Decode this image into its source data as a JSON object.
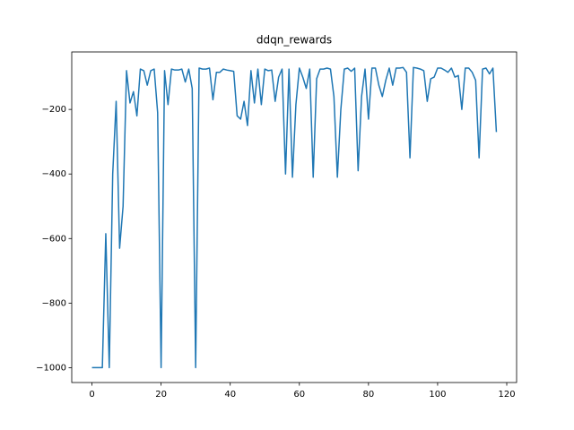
{
  "chart_data": {
    "type": "line",
    "title": "ddqn_rewards",
    "x": [
      0,
      1,
      2,
      3,
      4,
      5,
      6,
      7,
      8,
      9,
      10,
      11,
      12,
      13,
      14,
      15,
      16,
      17,
      18,
      19,
      20,
      21,
      22,
      23,
      24,
      25,
      26,
      27,
      28,
      29,
      30,
      31,
      32,
      33,
      34,
      35,
      36,
      37,
      38,
      39,
      40,
      41,
      42,
      43,
      44,
      45,
      46,
      47,
      48,
      49,
      50,
      51,
      52,
      53,
      54,
      55,
      56,
      57,
      58,
      59,
      60,
      61,
      62,
      63,
      64,
      65,
      66,
      67,
      68,
      69,
      70,
      71,
      72,
      73,
      74,
      75,
      76,
      77,
      78,
      79,
      80,
      81,
      82,
      83,
      84,
      85,
      86,
      87,
      88,
      89,
      90,
      91,
      92,
      93,
      94,
      95,
      96,
      97,
      98,
      99,
      100,
      101,
      102,
      103,
      104,
      105,
      106,
      107,
      108,
      109,
      110,
      111,
      112,
      113,
      114,
      115,
      116,
      117
    ],
    "series": [
      {
        "color": "#1f77b4",
        "values": [
          -1000,
          -1000,
          -1000,
          -1000,
          -585,
          -1000,
          -400,
          -175,
          -630,
          -500,
          -80,
          -180,
          -145,
          -220,
          -75,
          -80,
          -125,
          -80,
          -75,
          -210,
          -1000,
          -80,
          -185,
          -75,
          -78,
          -78,
          -75,
          -115,
          -75,
          -135,
          -1000,
          -72,
          -75,
          -75,
          -72,
          -170,
          -85,
          -85,
          -75,
          -78,
          -80,
          -82,
          -220,
          -230,
          -175,
          -250,
          -80,
          -180,
          -75,
          -185,
          -75,
          -80,
          -78,
          -175,
          -100,
          -75,
          -400,
          -75,
          -410,
          -185,
          -72,
          -100,
          -135,
          -75,
          -410,
          -105,
          -75,
          -75,
          -72,
          -75,
          -160,
          -410,
          -200,
          -75,
          -72,
          -82,
          -72,
          -390,
          -160,
          -75,
          -230,
          -72,
          -72,
          -125,
          -160,
          -110,
          -72,
          -125,
          -72,
          -72,
          -70,
          -85,
          -350,
          -70,
          -72,
          -75,
          -80,
          -175,
          -105,
          -100,
          -72,
          -72,
          -78,
          -85,
          -72,
          -100,
          -95,
          -200,
          -72,
          -72,
          -85,
          -110,
          -350,
          -75,
          -72,
          -90,
          -72,
          -270
        ]
      }
    ],
    "xlim": [
      -5.85,
      122.85
    ],
    "ylim": [
      -1046,
      -22
    ],
    "xticks": [
      0,
      20,
      40,
      60,
      80,
      100,
      120
    ],
    "yticks": [
      {
        "value": -1000,
        "label": "−1000"
      },
      {
        "value": -800,
        "label": "−800"
      },
      {
        "value": -600,
        "label": "−600"
      },
      {
        "value": -400,
        "label": "−400"
      },
      {
        "value": -200,
        "label": "−200"
      }
    ],
    "grid": false
  }
}
